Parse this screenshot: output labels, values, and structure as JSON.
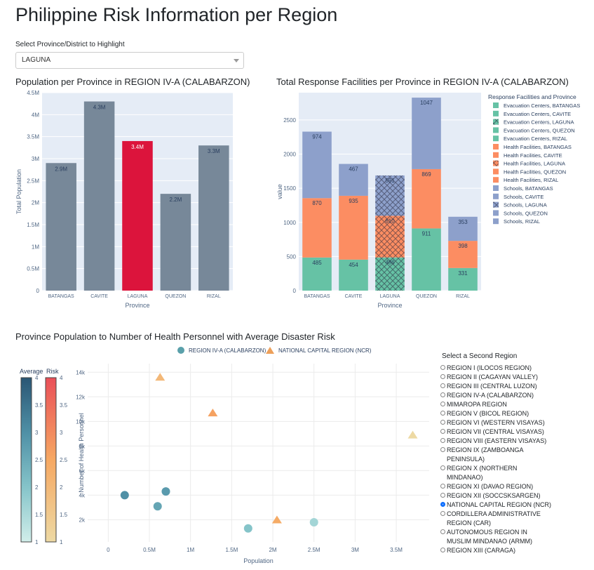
{
  "page": {
    "title": "Philippine Risk Information per Region"
  },
  "selector": {
    "label": "Select Province/District to Highlight",
    "value": "LAGUNA"
  },
  "chart_titles": {
    "population": "Population per Province in REGION IV-A (CALABARZON)",
    "facilities": "Total Response Facilities per Province in REGION IV-A (CALABARZON)",
    "scatter": "Province Population to Number of Health Personnel with Average Disaster Risk"
  },
  "colors": {
    "bar_default": "#778899",
    "bar_highlight": "#dc143c",
    "evac": "#66c2a5",
    "health": "#fc8d62",
    "schools": "#8da0cb",
    "plot_bg": "#e5ecf6",
    "region_a_marker": "#5aa0aa",
    "region_b_marker": "#eda05a"
  },
  "radio": {
    "title": "Select a Second Region",
    "options": [
      {
        "label": "REGION I (ILOCOS REGION)",
        "checked": false
      },
      {
        "label": "REGION II (CAGAYAN VALLEY)",
        "checked": false
      },
      {
        "label": "REGION III (CENTRAL LUZON)",
        "checked": false
      },
      {
        "label": "REGION IV-A (CALABARZON)",
        "checked": false
      },
      {
        "label": "MIMAROPA REGION",
        "checked": false
      },
      {
        "label": "REGION V (BICOL REGION)",
        "checked": false
      },
      {
        "label": "REGION VI (WESTERN VISAYAS)",
        "checked": false
      },
      {
        "label": "REGION VII (CENTRAL VISAYAS)",
        "checked": false
      },
      {
        "label": "REGION VIII (EASTERN VISAYAS)",
        "checked": false
      },
      {
        "label": "REGION IX (ZAMBOANGA PENINSULA)",
        "checked": false
      },
      {
        "label": "REGION X (NORTHERN MINDANAO)",
        "checked": false
      },
      {
        "label": "REGION XI (DAVAO REGION)",
        "checked": false
      },
      {
        "label": "REGION XII (SOCCSKSARGEN)",
        "checked": false
      },
      {
        "label": "NATIONAL CAPITAL REGION (NCR)",
        "checked": true
      },
      {
        "label": "CORDILLERA ADMINISTRATIVE REGION (CAR)",
        "checked": false
      },
      {
        "label": "AUTONOMOUS REGION IN MUSLIM MINDANAO (ARMM)",
        "checked": false
      },
      {
        "label": "REGION XIII (CARAGA)",
        "checked": false
      }
    ]
  },
  "chart_data": [
    {
      "type": "bar",
      "categories": [
        "BATANGAS",
        "CAVITE",
        "LAGUNA",
        "QUEZON",
        "RIZAL"
      ],
      "values": [
        2.9,
        4.3,
        3.4,
        2.2,
        3.3
      ],
      "value_labels": [
        "2.9M",
        "4.3M",
        "3.4M",
        "2.2M",
        "3.3M"
      ],
      "highlight": "LAGUNA",
      "xlabel": "Province",
      "ylabel": "Total Population",
      "ylim": [
        0,
        4.5
      ],
      "yticks": [
        0,
        0.5,
        1,
        1.5,
        2,
        2.5,
        3,
        3.5,
        4,
        4.5
      ],
      "ytick_labels": [
        "0",
        "0.5M",
        "1M",
        "1.5M",
        "2M",
        "2.5M",
        "3M",
        "3.5M",
        "4M",
        "4.5M"
      ]
    },
    {
      "type": "bar",
      "stacked": true,
      "categories": [
        "BATANGAS",
        "CAVITE",
        "LAGUNA",
        "QUEZON",
        "RIZAL"
      ],
      "series": [
        {
          "name": "Evacuation Centers",
          "values": [
            485,
            454,
            486,
            911,
            331
          ]
        },
        {
          "name": "Health Facilities",
          "values": [
            870,
            935,
            610,
            869,
            398
          ]
        },
        {
          "name": "Schools",
          "values": [
            974,
            467,
            591,
            1047,
            353
          ]
        }
      ],
      "xlabel": "Province",
      "ylabel": "value",
      "ylim": [
        0,
        2900
      ],
      "yticks": [
        0,
        500,
        1000,
        1500,
        2000,
        2500
      ],
      "legend_title": "Response Facilities and Province",
      "legend": [
        "Evacuation Centers, BATANGAS",
        "Evacuation Centers, CAVITE",
        "Evacuation Centers, LAGUNA",
        "Evacuation Centers, QUEZON",
        "Evacuation Centers, RIZAL",
        "Health Facilities, BATANGAS",
        "Health Facilities, CAVITE",
        "Health Facilities, LAGUNA",
        "Health Facilities, QUEZON",
        "Health Facilities, RIZAL",
        "Schools, BATANGAS",
        "Schools, CAVITE",
        "Schools, LAGUNA",
        "Schools, QUEZON",
        "Schools, RIZAL"
      ],
      "legend_placement": "right"
    },
    {
      "type": "scatter",
      "xlabel": "Population",
      "ylabel": "Number of Health Personnel",
      "xlim": [
        -0.25,
        3.9
      ],
      "ylim": [
        200,
        14700
      ],
      "xticks": [
        0,
        0.5,
        1,
        1.5,
        2,
        2.5,
        3,
        3.5
      ],
      "xtick_labels": [
        "0",
        "0.5M",
        "1M",
        "1.5M",
        "2M",
        "2.5M",
        "3M",
        "3.5M"
      ],
      "yticks": [
        2000,
        4000,
        6000,
        8000,
        10000,
        12000,
        14000
      ],
      "ytick_labels": [
        "2k",
        "4k",
        "6k",
        "8k",
        "10k",
        "12k",
        "14k"
      ],
      "series": [
        {
          "name": "REGION IV-A (CALABARZON)",
          "marker": "circle",
          "points": [
            {
              "x": 0.2,
              "y": 4000,
              "risk": 3.0
            },
            {
              "x": 0.6,
              "y": 3100,
              "risk": 2.6
            },
            {
              "x": 0.7,
              "y": 4300,
              "risk": 2.8
            },
            {
              "x": 1.7,
              "y": 1300,
              "risk": 2.0
            },
            {
              "x": 2.5,
              "y": 1800,
              "risk": 1.6
            }
          ]
        },
        {
          "name": "NATIONAL CAPITAL REGION (NCR)",
          "marker": "triangle",
          "points": [
            {
              "x": 0.63,
              "y": 13600,
              "risk": 2.0
            },
            {
              "x": 1.27,
              "y": 10700,
              "risk": 2.6
            },
            {
              "x": 2.05,
              "y": 2000,
              "risk": 2.4
            },
            {
              "x": 3.7,
              "y": 8900,
              "risk": 1.0
            }
          ]
        }
      ],
      "colorbars": [
        {
          "title": "Average",
          "range": [
            1,
            4
          ],
          "ticks": [
            1,
            1.5,
            2,
            2.5,
            3,
            3.5,
            4
          ]
        },
        {
          "title": "Risk",
          "range": [
            1,
            4
          ],
          "ticks": [
            1,
            1.5,
            2,
            2.5,
            3,
            3.5,
            4
          ]
        }
      ],
      "legend_placement": "top"
    }
  ]
}
